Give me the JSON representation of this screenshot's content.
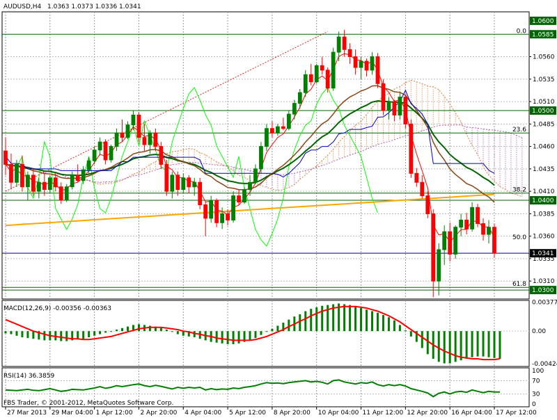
{
  "chart_data": {
    "type": "candlestick",
    "symbol_label": "AUDUSD,H4",
    "ohlc_label": "1.0363 1.0373 1.0336 1.0341",
    "copyright": "FBS Trader, © 2001-2012, MetaQuotes Software Corp.",
    "colors": {
      "bull": "#008000",
      "bear": "#ff0000",
      "grid": "#808080",
      "rsi": "#008000",
      "macd_signal": "#ff0000",
      "macd_hist": "#008000",
      "stoch": "#00ff00",
      "ma_fast": "#ff0000",
      "ma_mid": "#8b4513",
      "ma_slow": "#006400",
      "ma_200": "#ffa500",
      "kijun": "#0000cd",
      "horizontal": "#006400"
    },
    "price_axis": {
      "min": 1.029,
      "max": 1.061,
      "ticks": [
        "1.0560",
        "1.0535",
        "1.0510",
        "1.0485",
        "1.0460",
        "1.0435",
        "1.0410",
        "1.0385",
        "1.0360",
        "1.0335",
        "1.0310",
        "1.0285"
      ],
      "tick_values": [
        1.056,
        1.0535,
        1.051,
        1.0485,
        1.046,
        1.0435,
        1.041,
        1.0385,
        1.036,
        1.0335,
        1.031,
        1.0285
      ],
      "boxed": [
        {
          "label": "1.0600",
          "value": 1.06
        },
        {
          "label": "1.0585",
          "value": 1.0585
        },
        {
          "label": "1.0500",
          "value": 1.05
        },
        {
          "label": "1.0400",
          "value": 1.04
        },
        {
          "label": "1.0341",
          "value": 1.0341
        },
        {
          "label": "1.0300",
          "value": 1.03
        }
      ]
    },
    "fib_levels": [
      {
        "label": "0.0",
        "value": 1.0585
      },
      {
        "label": "23.6",
        "value": 1.0475
      },
      {
        "label": "38.2",
        "value": 1.0408
      },
      {
        "label": "50.0",
        "value": 1.0355
      },
      {
        "label": "61.8",
        "value": 1.0303
      }
    ],
    "horizontal_lines": [
      1.0585,
      1.05,
      1.0475,
      1.0408,
      1.04,
      1.0341,
      1.0303,
      1.03
    ],
    "x_labels": [
      "27 Mar 2013",
      "29 Mar 04:00",
      "1 Apr 12:00",
      "2 Apr 20:00",
      "4 Apr 04:00",
      "5 Apr 12:00",
      "8 Apr 20:00",
      "10 Apr 04:00",
      "11 Apr 12:00",
      "12 Apr 20:00",
      "16 Apr 04:00",
      "17 Apr 12:00"
    ],
    "x_label_index": [
      0,
      8,
      16,
      24,
      32,
      40,
      48,
      56,
      64,
      72,
      80,
      88
    ],
    "candles": [
      [
        1.0455,
        1.047,
        1.0428,
        1.044
      ],
      [
        1.044,
        1.0452,
        1.0412,
        1.042
      ],
      [
        1.042,
        1.0445,
        1.0415,
        1.044
      ],
      [
        1.044,
        1.045,
        1.041,
        1.0415
      ],
      [
        1.0415,
        1.0432,
        1.04,
        1.0428
      ],
      [
        1.0428,
        1.0436,
        1.0405,
        1.041
      ],
      [
        1.041,
        1.0425,
        1.0402,
        1.042
      ],
      [
        1.042,
        1.043,
        1.0405,
        1.0412
      ],
      [
        1.0412,
        1.0428,
        1.0408,
        1.0425
      ],
      [
        1.0425,
        1.043,
        1.041,
        1.0415
      ],
      [
        1.0415,
        1.042,
        1.0396,
        1.04
      ],
      [
        1.04,
        1.0418,
        1.0398,
        1.0415
      ],
      [
        1.0415,
        1.0432,
        1.0412,
        1.0428
      ],
      [
        1.0428,
        1.044,
        1.042,
        1.0422
      ],
      [
        1.0422,
        1.0438,
        1.0418,
        1.0434
      ],
      [
        1.0434,
        1.0448,
        1.043,
        1.0444
      ],
      [
        1.0444,
        1.046,
        1.044,
        1.0456
      ],
      [
        1.0456,
        1.047,
        1.045,
        1.0465
      ],
      [
        1.0465,
        1.0468,
        1.044,
        1.0445
      ],
      [
        1.0445,
        1.0462,
        1.0442,
        1.046
      ],
      [
        1.046,
        1.048,
        1.0455,
        1.0475
      ],
      [
        1.0475,
        1.049,
        1.0465,
        1.047
      ],
      [
        1.047,
        1.0488,
        1.0468,
        1.0484
      ],
      [
        1.0484,
        1.05,
        1.0478,
        1.0495
      ],
      [
        1.0495,
        1.0498,
        1.0465,
        1.047
      ],
      [
        1.047,
        1.0485,
        1.0455,
        1.0462
      ],
      [
        1.0462,
        1.0478,
        1.0452,
        1.0475
      ],
      [
        1.0475,
        1.048,
        1.0455,
        1.046
      ],
      [
        1.046,
        1.0465,
        1.0435,
        1.044
      ],
      [
        1.044,
        1.0445,
        1.0405,
        1.041
      ],
      [
        1.041,
        1.0432,
        1.0402,
        1.0428
      ],
      [
        1.0428,
        1.0432,
        1.0405,
        1.0412
      ],
      [
        1.0412,
        1.043,
        1.0408,
        1.0425
      ],
      [
        1.0425,
        1.0428,
        1.0408,
        1.0415
      ],
      [
        1.0415,
        1.0425,
        1.0405,
        1.042
      ],
      [
        1.042,
        1.0425,
        1.039,
        1.0395
      ],
      [
        1.0395,
        1.0398,
        1.036,
        1.038
      ],
      [
        1.038,
        1.0405,
        1.0375,
        1.04
      ],
      [
        1.04,
        1.0402,
        1.037,
        1.0375
      ],
      [
        1.0375,
        1.0392,
        1.0368,
        1.0385
      ],
      [
        1.0385,
        1.039,
        1.0372,
        1.0378
      ],
      [
        1.0378,
        1.041,
        1.0375,
        1.0405
      ],
      [
        1.0405,
        1.0412,
        1.0395,
        1.0398
      ],
      [
        1.0398,
        1.0415,
        1.0396,
        1.0412
      ],
      [
        1.0412,
        1.0428,
        1.0405,
        1.042
      ],
      [
        1.042,
        1.044,
        1.0418,
        1.0435
      ],
      [
        1.0435,
        1.0465,
        1.043,
        1.046
      ],
      [
        1.046,
        1.0485,
        1.0455,
        1.048
      ],
      [
        1.048,
        1.0488,
        1.047,
        1.0475
      ],
      [
        1.0475,
        1.0485,
        1.0472,
        1.0482
      ],
      [
        1.0482,
        1.0492,
        1.0478,
        1.048
      ],
      [
        1.048,
        1.05,
        1.0478,
        1.0496
      ],
      [
        1.0496,
        1.0512,
        1.049,
        1.0508
      ],
      [
        1.0508,
        1.0524,
        1.0502,
        1.052
      ],
      [
        1.052,
        1.0545,
        1.0515,
        1.054
      ],
      [
        1.054,
        1.0552,
        1.0528,
        1.0532
      ],
      [
        1.0532,
        1.0552,
        1.053,
        1.055
      ],
      [
        1.055,
        1.056,
        1.054,
        1.0545
      ],
      [
        1.0545,
        1.0548,
        1.052,
        1.0525
      ],
      [
        1.0525,
        1.057,
        1.0522,
        1.0565
      ],
      [
        1.0565,
        1.0588,
        1.0555,
        1.0582
      ],
      [
        1.0582,
        1.059,
        1.056,
        1.0568
      ],
      [
        1.0568,
        1.0575,
        1.0552,
        1.056
      ],
      [
        1.056,
        1.0568,
        1.054,
        1.0548
      ],
      [
        1.0548,
        1.056,
        1.0535,
        1.0555
      ],
      [
        1.0555,
        1.0558,
        1.0538,
        1.0545
      ],
      [
        1.0545,
        1.0565,
        1.054,
        1.056
      ],
      [
        1.056,
        1.0564,
        1.0525,
        1.053
      ],
      [
        1.053,
        1.0535,
        1.0495,
        1.05
      ],
      [
        1.05,
        1.0515,
        1.049,
        1.051
      ],
      [
        1.051,
        1.0512,
        1.0488,
        1.0495
      ],
      [
        1.0495,
        1.052,
        1.049,
        1.0515
      ],
      [
        1.0515,
        1.0518,
        1.048,
        1.0485
      ],
      [
        1.0485,
        1.049,
        1.0425,
        1.043
      ],
      [
        1.043,
        1.0436,
        1.0415,
        1.042
      ],
      [
        1.042,
        1.0428,
        1.0402,
        1.0405
      ],
      [
        1.0405,
        1.041,
        1.038,
        1.0385
      ],
      [
        1.0385,
        1.039,
        1.0292,
        1.031
      ],
      [
        1.031,
        1.0352,
        1.0294,
        1.0345
      ],
      [
        1.0345,
        1.0372,
        1.0328,
        1.0365
      ],
      [
        1.0365,
        1.0375,
        1.0332,
        1.034
      ],
      [
        1.034,
        1.0372,
        1.0335,
        1.037
      ],
      [
        1.037,
        1.0385,
        1.036,
        1.0378
      ],
      [
        1.0378,
        1.0386,
        1.0362,
        1.0368
      ],
      [
        1.0368,
        1.0398,
        1.0365,
        1.0392
      ],
      [
        1.0392,
        1.0396,
        1.037,
        1.0374
      ],
      [
        1.0374,
        1.038,
        1.0355,
        1.0362
      ],
      [
        1.0362,
        1.0378,
        1.0352,
        1.037
      ],
      [
        1.037,
        1.0374,
        1.0336,
        1.0341
      ]
    ],
    "macd": {
      "label": "MACD(12,26,9) -0.00356 -0.00363",
      "min": -0.0046,
      "max": 0.004,
      "ticks": [
        "0.00377",
        "0.00",
        "-0.00424"
      ],
      "tick_values": [
        0.00377,
        0.0,
        -0.00424
      ],
      "hist": [
        -0.0003,
        -0.0004,
        -0.0006,
        -0.0008,
        -0.0009,
        -0.001,
        -0.0011,
        -0.0012,
        -0.0012,
        -0.0012,
        -0.0013,
        -0.0013,
        -0.0012,
        -0.0011,
        -0.001,
        -0.0008,
        -0.0006,
        -0.0004,
        -0.0002,
        0.0,
        0.0002,
        0.0004,
        0.0006,
        0.0008,
        0.0009,
        0.0008,
        0.0007,
        0.0006,
        0.0004,
        0.0002,
        -0.0001,
        -0.0004,
        -0.0006,
        -0.0007,
        -0.0008,
        -0.001,
        -0.0012,
        -0.0014,
        -0.0015,
        -0.0016,
        -0.0017,
        -0.0017,
        -0.0016,
        -0.0014,
        -0.0012,
        -0.0009,
        -0.0005,
        -0.0001,
        0.0003,
        0.0007,
        0.0011,
        0.0015,
        0.0019,
        0.0022,
        0.0026,
        0.0029,
        0.0031,
        0.0033,
        0.0034,
        0.0035,
        0.0036,
        0.0035,
        0.0034,
        0.0032,
        0.003,
        0.0028,
        0.0026,
        0.0024,
        0.0021,
        0.0018,
        0.0014,
        0.0008,
        0.0001,
        -0.0007,
        -0.0014,
        -0.0022,
        -0.003,
        -0.0036,
        -0.004,
        -0.0042,
        -0.0042,
        -0.004,
        -0.0038,
        -0.0036,
        -0.0034,
        -0.0033,
        -0.0033,
        -0.0034,
        -0.0035,
        -0.0036
      ],
      "signal": [
        0.0015,
        0.0012,
        0.0009,
        0.0006,
        0.0003,
        0.0,
        -0.0002,
        -0.0004,
        -0.0006,
        -0.0007,
        -0.0008,
        -0.0009,
        -0.001,
        -0.001,
        -0.0011,
        -0.0011,
        -0.001,
        -0.0009,
        -0.0008,
        -0.0007,
        -0.0005,
        -0.0003,
        -0.0001,
        0.0001,
        0.0003,
        0.0004,
        0.0005,
        0.0005,
        0.0005,
        0.0004,
        0.0003,
        0.0002,
        0.0,
        -0.0001,
        -0.0003,
        -0.0004,
        -0.0006,
        -0.0007,
        -0.0009,
        -0.001,
        -0.0011,
        -0.0012,
        -0.0012,
        -0.0012,
        -0.0012,
        -0.0011,
        -0.0009,
        -0.0007,
        -0.0004,
        -0.0001,
        0.0002,
        0.0006,
        0.0009,
        0.0013,
        0.0016,
        0.002,
        0.0023,
        0.0026,
        0.0028,
        0.003,
        0.0031,
        0.0032,
        0.0032,
        0.0032,
        0.0031,
        0.003,
        0.0028,
        0.0026,
        0.0023,
        0.002,
        0.0016,
        0.0012,
        0.0007,
        0.0002,
        -0.0003,
        -0.0008,
        -0.0013,
        -0.0018,
        -0.0022,
        -0.0026,
        -0.0029,
        -0.0032,
        -0.0034,
        -0.0035,
        -0.0036,
        -0.0036,
        -0.0037,
        -0.0037,
        -0.0037,
        -0.0036
      ]
    },
    "rsi": {
      "label": "RSI(14) 36.3859",
      "min": 0,
      "max": 100,
      "ticks": [
        "100",
        "70",
        "30",
        "0"
      ],
      "tick_values": [
        100,
        70,
        30,
        0
      ],
      "values": [
        42,
        41,
        40,
        42,
        44,
        41,
        40,
        43,
        46,
        42,
        38,
        40,
        44,
        43,
        42,
        45,
        48,
        52,
        47,
        50,
        55,
        52,
        55,
        58,
        60,
        55,
        52,
        56,
        53,
        49,
        45,
        50,
        47,
        50,
        48,
        50,
        42,
        46,
        43,
        45,
        44,
        48,
        46,
        50,
        52,
        55,
        60,
        64,
        62,
        63,
        61,
        64,
        66,
        68,
        70,
        66,
        68,
        65,
        60,
        70,
        72,
        66,
        63,
        60,
        64,
        62,
        66,
        58,
        54,
        58,
        55,
        58,
        54,
        46,
        42,
        38,
        33,
        22,
        32,
        36,
        30,
        36,
        38,
        35,
        42,
        38,
        34,
        38,
        36,
        36
      ]
    }
  }
}
